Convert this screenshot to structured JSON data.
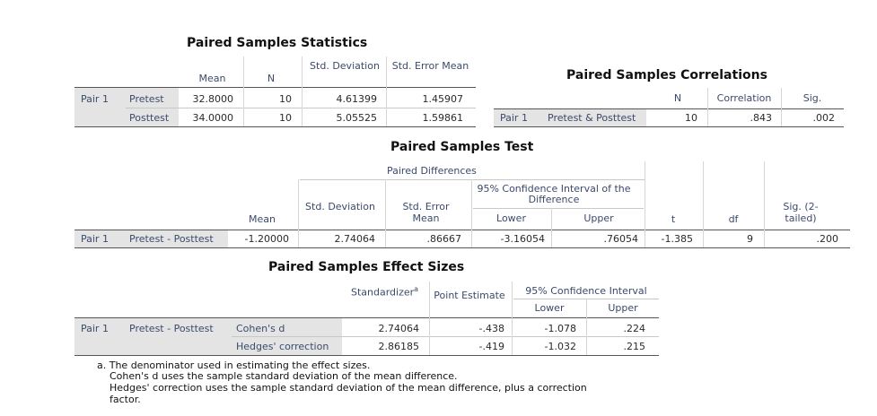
{
  "stats": {
    "title": "Paired Samples Statistics",
    "headers": {
      "mean": "Mean",
      "n": "N",
      "std_dev": "Std. Deviation",
      "std_err": "Std. Error Mean"
    },
    "pair": "Pair 1",
    "rows": [
      {
        "label": "Pretest",
        "mean": "32.8000",
        "n": "10",
        "sd": "4.61399",
        "se": "1.45907"
      },
      {
        "label": "Posttest",
        "mean": "34.0000",
        "n": "10",
        "sd": "5.05525",
        "se": "1.59861"
      }
    ]
  },
  "corr": {
    "title": "Paired Samples Correlations",
    "headers": {
      "n": "N",
      "correlation": "Correlation",
      "sig": "Sig."
    },
    "pair": "Pair 1",
    "row": {
      "label": "Pretest & Posttest",
      "n": "10",
      "corr": ".843",
      "sig": ".002"
    }
  },
  "test": {
    "title": "Paired Samples Test",
    "headers": {
      "paired_diff": "Paired Differences",
      "ci": "95% Confidence Interval of the Difference",
      "mean": "Mean",
      "std_dev": "Std. Deviation",
      "std_err": "Std. Error Mean",
      "lower": "Lower",
      "upper": "Upper",
      "t": "t",
      "df": "df",
      "sig": "Sig. (2-tailed)"
    },
    "pair": "Pair 1",
    "row": {
      "label": "Pretest - Posttest",
      "mean": "-1.20000",
      "sd": "2.74064",
      "se": ".86667",
      "lower": "-3.16054",
      "upper": ".76054",
      "t": "-1.385",
      "df": "9",
      "sig": ".200"
    }
  },
  "effect": {
    "title": "Paired Samples Effect Sizes",
    "headers": {
      "standardizer": "Standardizer",
      "sup": "a",
      "point": "Point Estimate",
      "ci": "95% Confidence Interval",
      "lower": "Lower",
      "upper": "Upper"
    },
    "pair": "Pair 1",
    "label": "Pretest - Posttest",
    "rows": [
      {
        "measure": "Cohen's d",
        "standardizer": "2.74064",
        "point": "-.438",
        "lower": "-1.078",
        "upper": ".224"
      },
      {
        "measure": "Hedges' correction",
        "standardizer": "2.86185",
        "point": "-.419",
        "lower": "-1.032",
        "upper": ".215"
      }
    ]
  },
  "footnote": {
    "line1": "a. The denominator used in estimating the effect sizes.",
    "line2": "Cohen's d uses the sample standard deviation of the mean difference.",
    "line3": "Hedges' correction uses the sample standard deviation of the mean difference, plus a correction",
    "line4": "factor."
  }
}
